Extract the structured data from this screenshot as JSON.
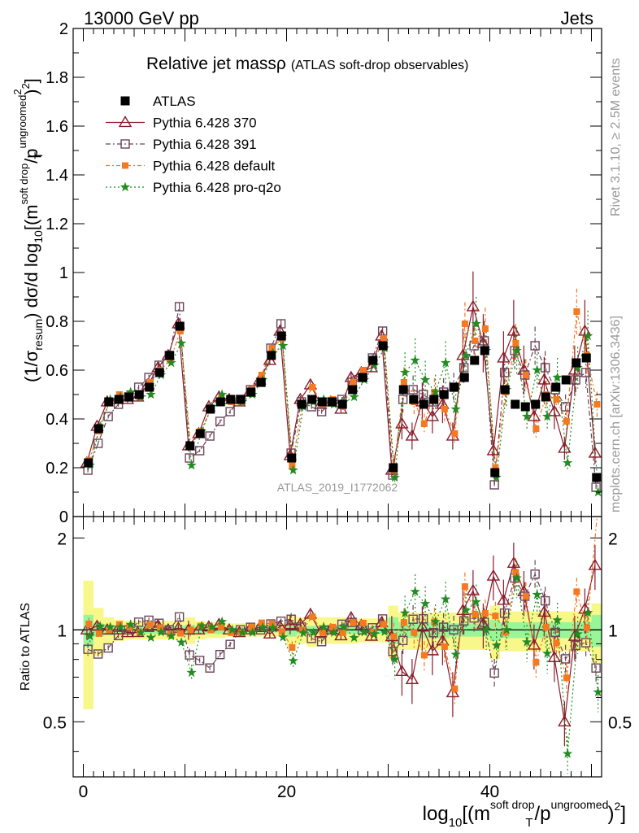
{
  "header": {
    "left": "13000 GeV pp",
    "right": "Jets"
  },
  "title": {
    "main": "Relative jet mass",
    "rho": "ρ",
    "paren": "(ATLAS soft-drop observables)"
  },
  "side_labels": {
    "rivet": "Rivet 3.1.10, ≥ 2.5M events",
    "mcplots": "mcplots.cern.ch [arXiv:1306.3436]"
  },
  "watermark": "ATLAS_2019_I1772062",
  "ratio_label": "Ratio to ATLAS",
  "top_ylabel": {
    "a": "(1/σ",
    "b": "resum",
    "c": ") dσ/d log",
    "d": "10",
    "e": "[(m",
    "f": "soft drop",
    "g": "/p",
    "h": "ungroomed",
    "i": "2",
    "j": "T",
    "k": ")",
    "l": "2",
    "m": "]"
  },
  "xlabel": {
    "a": "log",
    "b": "10",
    "c": "[(m",
    "d": "soft drop",
    "e": "/p",
    "f": "ungroomed",
    "g": "T",
    "h": ")",
    "i": "2",
    "j": "]"
  },
  "colors": {
    "atlas": "#000000",
    "p370": "#8b1a2b",
    "p391": "#6b4558",
    "pdefault": "#f47920",
    "pq2o": "#228b22",
    "band_inner": "#98f598",
    "band_outer": "#f8f88a"
  },
  "chart_data": {
    "type": "scatter",
    "xlim": [
      -1,
      51
    ],
    "ylim_top": [
      0,
      2
    ],
    "ylim_ratio": [
      0.33,
      2.35
    ],
    "top_yticks": [
      "0",
      "0.2",
      "0.4",
      "0.6",
      "0.8",
      "1",
      "1.2",
      "1.4",
      "1.6",
      "1.8",
      "2"
    ],
    "ratio_yticks": [
      "0.5",
      "1",
      "2"
    ],
    "xticks": [
      "0",
      "20",
      "40"
    ],
    "legend": [
      "ATLAS",
      "Pythia 6.428 370",
      "Pythia 6.428 391",
      "Pythia 6.428 default",
      "Pythia 6.428 pro-q2o"
    ],
    "atlas": [
      0.22,
      0.36,
      0.47,
      0.48,
      0.49,
      0.5,
      0.53,
      0.59,
      0.66,
      0.78,
      0.29,
      0.34,
      0.44,
      0.47,
      0.48,
      0.48,
      0.51,
      0.55,
      0.66,
      0.74,
      0.24,
      0.46,
      0.48,
      0.47,
      0.47,
      0.46,
      0.52,
      0.57,
      0.64,
      0.7,
      0.2,
      0.52,
      0.48,
      0.46,
      0.48,
      0.5,
      0.53,
      0.57,
      0.64,
      0.68,
      0.18,
      0.52,
      0.46,
      0.45,
      0.46,
      0.49,
      0.53,
      0.56,
      0.63,
      0.65,
      0.16
    ],
    "series": [
      {
        "name": "Pythia 6.428 370",
        "values": [
          0.22,
          0.37,
          0.47,
          0.48,
          0.48,
          0.49,
          0.54,
          0.61,
          0.66,
          0.79,
          0.29,
          0.34,
          0.45,
          0.49,
          0.48,
          0.47,
          0.51,
          0.56,
          0.64,
          0.76,
          0.25,
          0.48,
          0.54,
          0.46,
          0.47,
          0.44,
          0.57,
          0.59,
          0.61,
          0.74,
          0.19,
          0.38,
          0.33,
          0.47,
          0.41,
          0.46,
          0.33,
          0.66,
          0.86,
          0.71,
          0.27,
          0.65,
          0.76,
          0.6,
          0.41,
          0.56,
          0.43,
          0.28,
          0.6,
          0.76,
          0.26
        ]
      },
      {
        "name": "Pythia 6.428 391",
        "values": [
          0.19,
          0.3,
          0.41,
          0.46,
          0.49,
          0.53,
          0.57,
          0.62,
          0.66,
          0.86,
          0.24,
          0.27,
          0.33,
          0.39,
          0.43,
          0.48,
          0.52,
          0.55,
          0.69,
          0.79,
          0.26,
          0.47,
          0.45,
          0.43,
          0.47,
          0.48,
          0.55,
          0.57,
          0.65,
          0.76,
          0.17,
          0.48,
          0.52,
          0.5,
          0.47,
          0.51,
          0.53,
          0.61,
          0.7,
          0.72,
          0.13,
          0.59,
          0.68,
          0.58,
          0.7,
          0.61,
          0.52,
          0.45,
          0.56,
          0.59,
          0.12
        ]
      },
      {
        "name": "Pythia 6.428 default",
        "values": [
          0.23,
          0.35,
          0.47,
          0.5,
          0.5,
          0.49,
          0.55,
          0.6,
          0.64,
          0.76,
          0.29,
          0.35,
          0.44,
          0.48,
          0.47,
          0.47,
          0.52,
          0.58,
          0.69,
          0.73,
          0.21,
          0.46,
          0.53,
          0.46,
          0.48,
          0.45,
          0.55,
          0.6,
          0.63,
          0.73,
          0.19,
          0.55,
          0.47,
          0.38,
          0.51,
          0.44,
          0.34,
          0.79,
          0.72,
          0.77,
          0.2,
          0.51,
          0.71,
          0.58,
          0.36,
          0.5,
          0.48,
          0.39,
          0.84,
          0.66,
          0.46
        ]
      },
      {
        "name": "Pythia 6.428 pro-q2o",
        "values": [
          0.21,
          0.37,
          0.48,
          0.49,
          0.51,
          0.49,
          0.5,
          0.58,
          0.63,
          0.71,
          0.21,
          0.35,
          0.45,
          0.5,
          0.48,
          0.47,
          0.5,
          0.56,
          0.67,
          0.7,
          0.19,
          0.45,
          0.47,
          0.48,
          0.46,
          0.47,
          0.49,
          0.56,
          0.62,
          0.69,
          0.16,
          0.59,
          0.64,
          0.56,
          0.51,
          0.63,
          0.44,
          0.66,
          0.79,
          0.68,
          0.16,
          0.52,
          0.68,
          0.41,
          0.6,
          0.41,
          0.57,
          0.22,
          0.61,
          0.74,
          0.1
        ]
      }
    ],
    "band_inner_halfwidth": [
      0.12,
      0.05,
      0.04,
      0.03,
      0.03,
      0.03,
      0.03,
      0.03,
      0.03,
      0.03,
      0.04,
      0.03,
      0.03,
      0.03,
      0.02,
      0.02,
      0.02,
      0.02,
      0.02,
      0.02,
      0.05,
      0.03,
      0.03,
      0.03,
      0.03,
      0.03,
      0.03,
      0.03,
      0.03,
      0.03,
      0.1,
      0.06,
      0.06,
      0.06,
      0.06,
      0.06,
      0.05,
      0.05,
      0.05,
      0.05,
      0.08,
      0.06,
      0.06,
      0.06,
      0.06,
      0.06,
      0.06,
      0.06,
      0.06,
      0.06,
      0.12
    ],
    "band_outer_halfwidth": [
      0.45,
      0.18,
      0.1,
      0.08,
      0.07,
      0.07,
      0.07,
      0.07,
      0.07,
      0.07,
      0.1,
      0.07,
      0.06,
      0.06,
      0.05,
      0.05,
      0.05,
      0.05,
      0.05,
      0.05,
      0.12,
      0.1,
      0.12,
      0.1,
      0.1,
      0.1,
      0.1,
      0.09,
      0.09,
      0.09,
      0.2,
      0.14,
      0.14,
      0.14,
      0.14,
      0.14,
      0.14,
      0.14,
      0.14,
      0.14,
      0.2,
      0.15,
      0.15,
      0.15,
      0.15,
      0.15,
      0.15,
      0.15,
      0.15,
      0.15,
      0.22
    ]
  }
}
